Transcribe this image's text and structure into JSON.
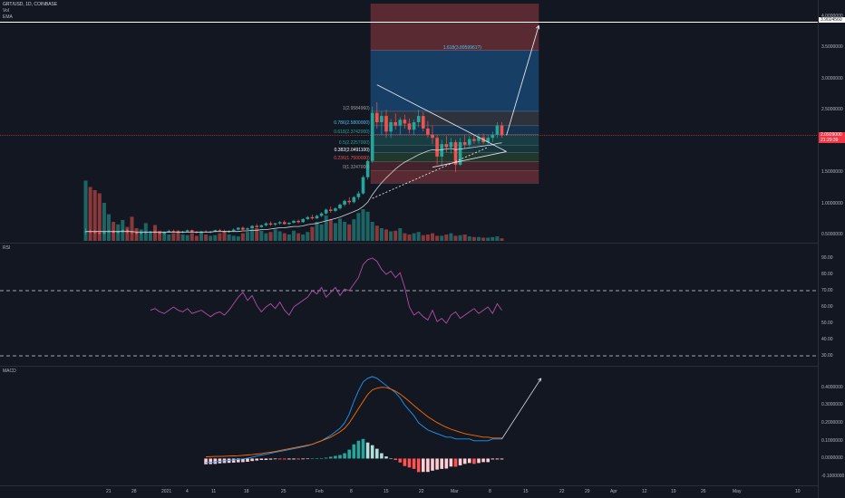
{
  "header": {
    "symbol_line": "GRT/USD, 1D, COINBASE",
    "indicator_vol": "Vol",
    "indicator_ema": "EMA",
    "indicator_rsi": "RSI",
    "indicator_macd": "MACD"
  },
  "price_axis": {
    "ticks": [
      "4.0000000",
      "3.5000000",
      "3.0000000",
      "2.5000000",
      "2.0000000",
      "1.5000000",
      "1.0000000",
      "0.5000000"
    ],
    "last_price_tag": "2.0929000",
    "countdown_tag": "21:29:39",
    "horizontal_line_tag": "3.9024560"
  },
  "rsi_axis": {
    "ticks": [
      "90.00",
      "80.00",
      "70.00",
      "60.00",
      "50.00",
      "40.00",
      "30.00"
    ]
  },
  "macd_axis": {
    "ticks": [
      "0.4000000",
      "0.3000000",
      "0.2000000",
      "0.1000000",
      "0.0000000",
      "-0.1000000"
    ]
  },
  "time_axis": {
    "ticks": [
      "21",
      "28",
      "2021",
      "4",
      "11",
      "18",
      "25",
      "Feb",
      "8",
      "15",
      "22",
      "Mar",
      "8",
      "15",
      "22",
      "29",
      "Apr",
      "12",
      "19",
      "26",
      "May",
      "10"
    ]
  },
  "fib_levels": [
    {
      "label": "1.618(3.8959961?)",
      "color": "#4fc3f7"
    },
    {
      "label": "1(2.9584960)",
      "color": "#9e9e9e"
    },
    {
      "label": "0.786(2.5800000)",
      "color": "#4fc3f7"
    },
    {
      "label": "0.618(2.3742000)",
      "color": "#26a69a"
    },
    {
      "label": "0.5(2.2257000)",
      "color": "#26a69a"
    },
    {
      "label": "0.382(2.0491100)",
      "color": "#ffffff"
    },
    {
      "label": "0.236(1.7500000)",
      "color": "#ef5350"
    },
    {
      "label": "0(1.3247000)",
      "color": "#9e9e9e"
    }
  ],
  "colors": {
    "background": "#131722",
    "up": "#26a69a",
    "down": "#ef5350",
    "rsi_line": "#b24ea6",
    "macd_line": "#2196f3",
    "signal_line": "#ff6d00",
    "price_tag": "#f23645"
  },
  "chart_data": {
    "type": "candlestick",
    "price": {
      "ohlc": [
        [
          0.54,
          0.6,
          0.5,
          0.55
        ],
        [
          0.55,
          0.58,
          0.52,
          0.54
        ],
        [
          0.54,
          0.57,
          0.51,
          0.53
        ],
        [
          0.53,
          0.56,
          0.5,
          0.52
        ],
        [
          0.52,
          0.55,
          0.5,
          0.54
        ],
        [
          0.54,
          0.58,
          0.52,
          0.55
        ],
        [
          0.55,
          0.57,
          0.52,
          0.53
        ],
        [
          0.53,
          0.56,
          0.51,
          0.55
        ],
        [
          0.55,
          0.59,
          0.53,
          0.57
        ],
        [
          0.57,
          0.59,
          0.52,
          0.54
        ],
        [
          0.54,
          0.56,
          0.51,
          0.53
        ],
        [
          0.53,
          0.55,
          0.5,
          0.52
        ],
        [
          0.52,
          0.55,
          0.5,
          0.53
        ],
        [
          0.53,
          0.56,
          0.51,
          0.54
        ],
        [
          0.54,
          0.56,
          0.52,
          0.55
        ],
        [
          0.55,
          0.57,
          0.52,
          0.53
        ],
        [
          0.53,
          0.55,
          0.5,
          0.52
        ],
        [
          0.52,
          0.55,
          0.5,
          0.54
        ],
        [
          0.54,
          0.58,
          0.53,
          0.56
        ],
        [
          0.56,
          0.58,
          0.53,
          0.55
        ],
        [
          0.55,
          0.57,
          0.52,
          0.53
        ],
        [
          0.53,
          0.56,
          0.52,
          0.55
        ],
        [
          0.55,
          0.58,
          0.54,
          0.57
        ],
        [
          0.57,
          0.58,
          0.53,
          0.54
        ],
        [
          0.54,
          0.56,
          0.52,
          0.53
        ],
        [
          0.53,
          0.56,
          0.52,
          0.55
        ],
        [
          0.55,
          0.57,
          0.53,
          0.54
        ],
        [
          0.54,
          0.56,
          0.52,
          0.55
        ],
        [
          0.55,
          0.58,
          0.54,
          0.57
        ],
        [
          0.57,
          0.59,
          0.55,
          0.56
        ],
        [
          0.56,
          0.58,
          0.53,
          0.54
        ],
        [
          0.54,
          0.57,
          0.53,
          0.56
        ],
        [
          0.56,
          0.6,
          0.55,
          0.58
        ],
        [
          0.58,
          0.62,
          0.57,
          0.61
        ],
        [
          0.61,
          0.63,
          0.57,
          0.58
        ],
        [
          0.58,
          0.62,
          0.57,
          0.6
        ],
        [
          0.6,
          0.65,
          0.59,
          0.64
        ],
        [
          0.64,
          0.67,
          0.61,
          0.62
        ],
        [
          0.62,
          0.66,
          0.61,
          0.65
        ],
        [
          0.65,
          0.7,
          0.63,
          0.68
        ],
        [
          0.68,
          0.71,
          0.64,
          0.66
        ],
        [
          0.66,
          0.69,
          0.64,
          0.68
        ],
        [
          0.68,
          0.72,
          0.66,
          0.7
        ],
        [
          0.7,
          0.73,
          0.66,
          0.67
        ],
        [
          0.67,
          0.7,
          0.65,
          0.69
        ],
        [
          0.69,
          0.74,
          0.68,
          0.72
        ],
        [
          0.72,
          0.74,
          0.68,
          0.7
        ],
        [
          0.7,
          0.76,
          0.69,
          0.75
        ],
        [
          0.75,
          0.8,
          0.73,
          0.78
        ],
        [
          0.78,
          0.82,
          0.74,
          0.76
        ],
        [
          0.76,
          0.82,
          0.75,
          0.8
        ],
        [
          0.8,
          0.86,
          0.78,
          0.84
        ],
        [
          0.84,
          0.92,
          0.82,
          0.9
        ],
        [
          0.9,
          0.95,
          0.85,
          0.88
        ],
        [
          0.88,
          0.94,
          0.86,
          0.92
        ],
        [
          0.92,
          1.0,
          0.9,
          0.98
        ],
        [
          0.98,
          1.06,
          0.95,
          1.04
        ],
        [
          1.04,
          1.1,
          0.98,
          1.02
        ],
        [
          1.02,
          1.12,
          1.0,
          1.1
        ],
        [
          1.1,
          1.2,
          1.06,
          1.16
        ],
        [
          1.16,
          1.45,
          1.14,
          1.42
        ],
        [
          1.42,
          1.7,
          1.38,
          1.68
        ],
        [
          1.68,
          2.55,
          1.65,
          2.45
        ],
        [
          2.45,
          2.62,
          2.2,
          2.3
        ],
        [
          2.3,
          2.48,
          2.1,
          2.4
        ],
        [
          2.4,
          2.5,
          2.05,
          2.15
        ],
        [
          2.15,
          2.35,
          2.05,
          2.3
        ],
        [
          2.3,
          2.44,
          2.18,
          2.25
        ],
        [
          2.25,
          2.38,
          2.1,
          2.34
        ],
        [
          2.34,
          2.42,
          2.2,
          2.28
        ],
        [
          2.28,
          2.36,
          2.12,
          2.18
        ],
        [
          2.18,
          2.34,
          2.1,
          2.3
        ],
        [
          2.3,
          2.5,
          2.22,
          2.4
        ],
        [
          2.4,
          2.46,
          2.15,
          2.2
        ],
        [
          2.2,
          2.32,
          2.05,
          2.1
        ],
        [
          2.1,
          2.25,
          1.95,
          2.05
        ],
        [
          2.05,
          2.1,
          1.62,
          1.75
        ],
        [
          1.75,
          2.02,
          1.6,
          1.95
        ],
        [
          1.95,
          2.08,
          1.82,
          1.9
        ],
        [
          1.9,
          2.05,
          1.8,
          1.98
        ],
        [
          1.98,
          2.02,
          1.5,
          1.62
        ],
        [
          1.62,
          2.05,
          1.6,
          1.98
        ],
        [
          1.98,
          2.1,
          1.88,
          1.94
        ],
        [
          1.94,
          2.08,
          1.9,
          2.03
        ],
        [
          2.03,
          2.1,
          1.96,
          2.0
        ],
        [
          2.0,
          2.12,
          1.95,
          2.06
        ],
        [
          2.06,
          2.12,
          1.95,
          1.98
        ],
        [
          1.98,
          2.1,
          1.94,
          2.05
        ],
        [
          2.05,
          2.15,
          1.98,
          2.1
        ],
        [
          2.1,
          2.3,
          2.05,
          2.25
        ],
        [
          2.25,
          2.3,
          2.05,
          2.09
        ]
      ],
      "volume": [
        0.95,
        0.85,
        0.8,
        0.75,
        0.6,
        0.42,
        0.3,
        0.26,
        0.33,
        0.22,
        0.38,
        0.2,
        0.18,
        0.28,
        0.14,
        0.25,
        0.16,
        0.14,
        0.1,
        0.12,
        0.16,
        0.1,
        0.09,
        0.12,
        0.08,
        0.14,
        0.1,
        0.08,
        0.09,
        0.12,
        0.14,
        0.1,
        0.08,
        0.07,
        0.12,
        0.14,
        0.18,
        0.2,
        0.16,
        0.12,
        0.14,
        0.18,
        0.15,
        0.12,
        0.1,
        0.16,
        0.12,
        0.1,
        0.14,
        0.22,
        0.3,
        0.26,
        0.4,
        0.34,
        0.28,
        0.35,
        0.3,
        0.26,
        0.34,
        0.44,
        0.5,
        0.46,
        0.3,
        0.24,
        0.2,
        0.18,
        0.15,
        0.16,
        0.2,
        0.12,
        0.1,
        0.12,
        0.14,
        0.09,
        0.1,
        0.12,
        0.08,
        0.08,
        0.1,
        0.12,
        0.08,
        0.09,
        0.1,
        0.07,
        0.06,
        0.06,
        0.05,
        0.05,
        0.06,
        0.07,
        0.04
      ],
      "ema": [
        0.55,
        0.55,
        0.55,
        0.55,
        0.55,
        0.55,
        0.55,
        0.55,
        0.55,
        0.55,
        0.55,
        0.54,
        0.54,
        0.54,
        0.54,
        0.54,
        0.54,
        0.54,
        0.54,
        0.54,
        0.54,
        0.54,
        0.54,
        0.54,
        0.54,
        0.54,
        0.54,
        0.54,
        0.55,
        0.55,
        0.55,
        0.55,
        0.55,
        0.55,
        0.56,
        0.56,
        0.57,
        0.57,
        0.58,
        0.58,
        0.59,
        0.6,
        0.61,
        0.61,
        0.62,
        0.63,
        0.63,
        0.64,
        0.66,
        0.67,
        0.68,
        0.7,
        0.72,
        0.74,
        0.76,
        0.78,
        0.81,
        0.84,
        0.87,
        0.9,
        0.95,
        1.02,
        1.14,
        1.24,
        1.33,
        1.41,
        1.48,
        1.55,
        1.61,
        1.66,
        1.7,
        1.74,
        1.78,
        1.81,
        1.84,
        1.86,
        1.85,
        1.86,
        1.87,
        1.88,
        1.86,
        1.87,
        1.88,
        1.89,
        1.9,
        1.91,
        1.92,
        1.93,
        1.94,
        1.96,
        1.97
      ],
      "ylim": [
        0.4,
        4.2
      ],
      "fib_range": {
        "top": 4.2,
        "bottom": 1.3247
      },
      "last_price": 2.0929,
      "horizontal_line": 3.9024
    },
    "rsi": {
      "start_index": 14,
      "values": [
        58,
        59,
        57,
        56,
        58,
        60,
        58,
        57,
        59,
        56,
        57,
        58,
        56,
        54,
        56,
        57,
        55,
        58,
        62,
        66,
        69,
        64,
        67,
        61,
        57,
        60,
        62,
        59,
        63,
        58,
        55,
        60,
        62,
        64,
        66,
        70,
        68,
        72,
        66,
        69,
        72,
        67,
        71,
        70,
        74,
        78,
        86,
        89,
        90,
        88,
        83,
        80,
        82,
        78,
        81,
        72,
        60,
        55,
        57,
        54,
        52,
        58,
        51,
        53,
        50,
        55,
        57,
        53,
        55,
        57,
        59,
        56,
        58,
        60,
        56,
        62,
        58
      ],
      "ylim": [
        25,
        95
      ],
      "bands": [
        70,
        30
      ]
    },
    "macd": {
      "start_index": 26,
      "macd": [
        -0.022,
        -0.02,
        -0.018,
        -0.015,
        -0.012,
        -0.01,
        -0.008,
        -0.005,
        -0.002,
        0.002,
        0.008,
        0.014,
        0.02,
        0.024,
        0.03,
        0.036,
        0.04,
        0.045,
        0.05,
        0.055,
        0.06,
        0.066,
        0.072,
        0.08,
        0.09,
        0.1,
        0.115,
        0.13,
        0.15,
        0.17,
        0.2,
        0.25,
        0.32,
        0.38,
        0.43,
        0.45,
        0.46,
        0.45,
        0.43,
        0.41,
        0.39,
        0.37,
        0.34,
        0.3,
        0.27,
        0.24,
        0.2,
        0.18,
        0.16,
        0.15,
        0.14,
        0.13,
        0.12,
        0.12,
        0.11,
        0.11,
        0.11,
        0.11,
        0.1,
        0.1,
        0.1,
        0.1,
        0.11,
        0.11,
        0.11
      ],
      "signal": [
        0.01,
        0.011,
        0.012,
        0.012,
        0.013,
        0.014,
        0.015,
        0.016,
        0.018,
        0.02,
        0.022,
        0.025,
        0.028,
        0.032,
        0.036,
        0.04,
        0.045,
        0.05,
        0.055,
        0.06,
        0.065,
        0.07,
        0.075,
        0.08,
        0.09,
        0.1,
        0.11,
        0.12,
        0.135,
        0.15,
        0.17,
        0.2,
        0.24,
        0.28,
        0.32,
        0.36,
        0.385,
        0.395,
        0.4,
        0.398,
        0.39,
        0.378,
        0.362,
        0.342,
        0.32,
        0.298,
        0.276,
        0.255,
        0.235,
        0.218,
        0.202,
        0.188,
        0.176,
        0.165,
        0.156,
        0.148,
        0.14,
        0.135,
        0.13,
        0.125,
        0.12,
        0.12,
        0.115,
        0.115,
        0.115
      ],
      "ylim": [
        -0.14,
        0.5
      ],
      "projection_end": 0.45
    },
    "annotations": {
      "triangle_upper": [
        [
          63,
          2.9
        ],
        [
          91,
          1.83
        ]
      ],
      "triangle_lower": [
        [
          75,
          1.58
        ],
        [
          91,
          1.83
        ]
      ],
      "projection_arrow": [
        [
          91,
          2.09
        ],
        [
          98,
          3.85
        ]
      ],
      "ema_extension": [
        [
          62,
          1.08
        ],
        [
          87,
          1.9
        ]
      ]
    }
  }
}
